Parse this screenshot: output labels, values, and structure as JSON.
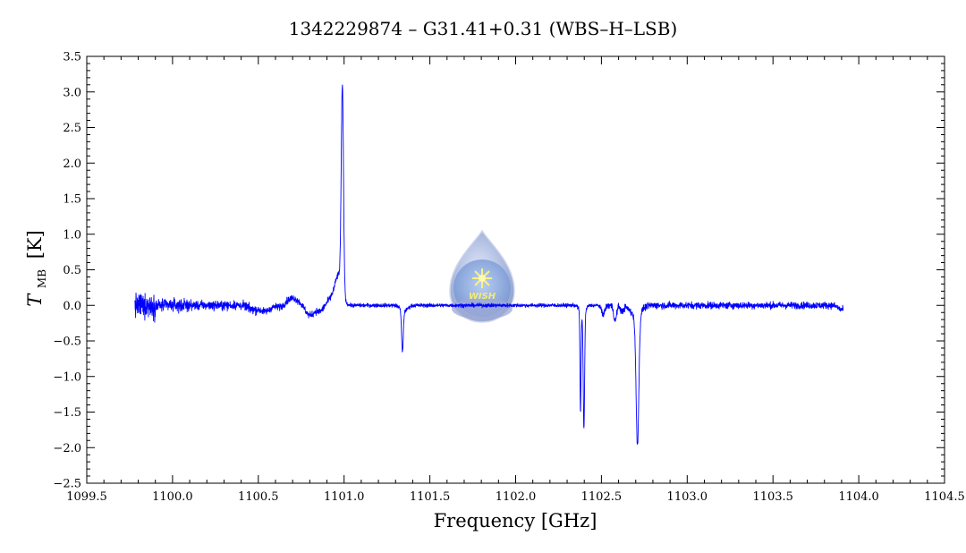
{
  "chart_data": {
    "type": "line",
    "title": "1342229874 – G31.41+0.31 (WBS–H–LSB)",
    "xlabel": "Frequency [GHz]",
    "ylabel_main": "T",
    "ylabel_sub": "MB",
    "ylabel_unit": "[K]",
    "xlim": [
      1099.5,
      1104.5
    ],
    "ylim": [
      -2.5,
      3.5
    ],
    "x_ticks": [
      "1099.5",
      "1100.0",
      "1100.5",
      "1101.0",
      "1101.5",
      "1102.0",
      "1102.5",
      "1103.0",
      "1103.5",
      "1104.0",
      "1104.5"
    ],
    "y_ticks": [
      "3.5",
      "3.0",
      "2.5",
      "2.0",
      "1.5",
      "1.0",
      "0.5",
      "0.0",
      "−0.5",
      "−1.0",
      "−1.5",
      "−2.0",
      "−2.5"
    ],
    "x_minor_step": 0.1,
    "y_minor_step": 0.1,
    "grid": false,
    "series": [
      {
        "color": "#0000ff",
        "x_range": [
          1099.78,
          1103.91
        ],
        "features": [
          {
            "x": 1100.54,
            "y": -0.12
          },
          {
            "x": 1100.7,
            "y": 0.12
          },
          {
            "x": 1100.8,
            "y": -0.2
          },
          {
            "x": 1100.99,
            "y": 2.9
          },
          {
            "x": 1101.34,
            "y": -0.62
          },
          {
            "x": 1102.38,
            "y": -1.45
          },
          {
            "x": 1102.4,
            "y": -1.65
          },
          {
            "x": 1102.51,
            "y": -0.15
          },
          {
            "x": 1102.58,
            "y": -0.25
          },
          {
            "x": 1102.71,
            "y": -1.87
          }
        ]
      }
    ],
    "watermark": "WISH"
  }
}
